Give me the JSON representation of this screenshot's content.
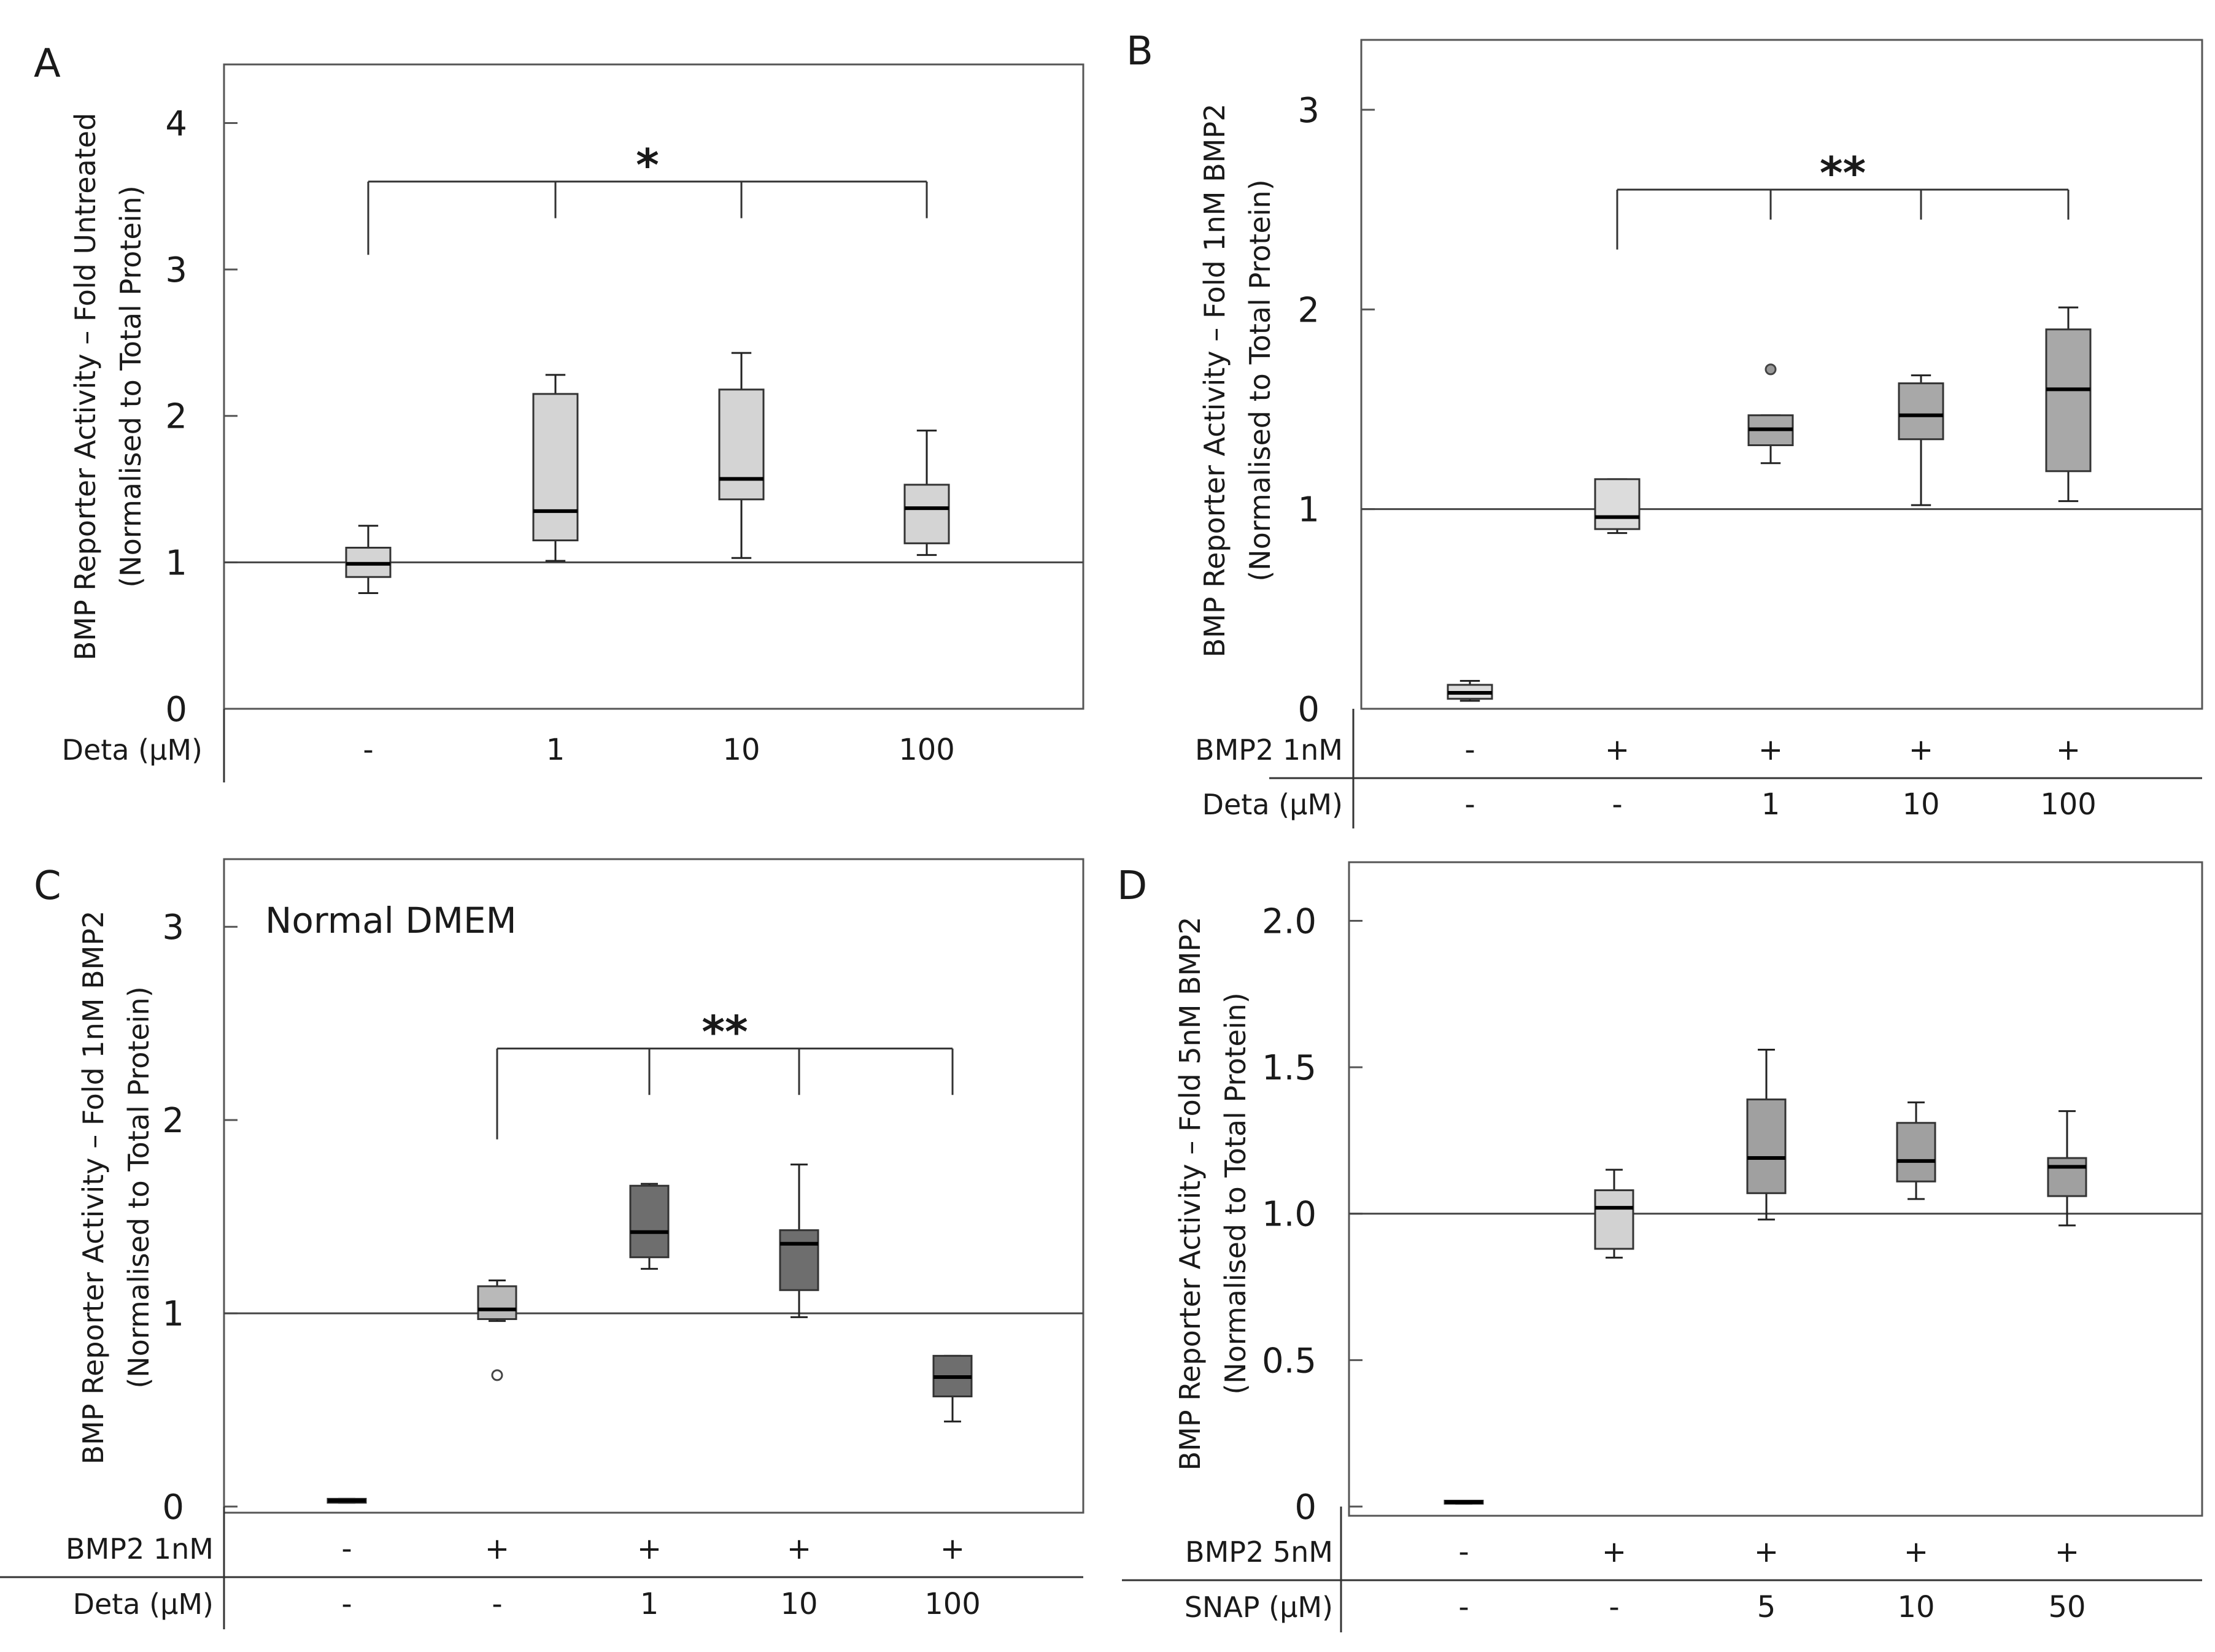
{
  "chart_data": [
    {
      "panel": "A",
      "type": "box",
      "title": "",
      "ylabel_line1": "BMP Reporter Activity – Fold Untreated",
      "ylabel_line2": "(Normalised to Total Protein)",
      "ylim": [
        0,
        4.4
      ],
      "yticks": [
        "0",
        "1",
        "2",
        "3",
        "4"
      ],
      "ytick_values": [
        0,
        1,
        2,
        3,
        4
      ],
      "reference_line": 1,
      "rows": [
        {
          "label": "Deta (µM)",
          "values": [
            "-",
            "1",
            "10",
            "100"
          ]
        }
      ],
      "boxes": [
        {
          "color": "#d4d4d4",
          "min": 0.79,
          "q1": 0.9,
          "median": 0.99,
          "q3": 1.1,
          "max": 1.25,
          "outliers": []
        },
        {
          "color": "#d4d4d4",
          "min": 1.01,
          "q1": 1.15,
          "median": 1.35,
          "q3": 2.15,
          "max": 2.28,
          "outliers": []
        },
        {
          "color": "#d4d4d4",
          "min": 1.03,
          "q1": 1.43,
          "median": 1.57,
          "q3": 2.18,
          "max": 2.43,
          "outliers": []
        },
        {
          "color": "#d4d4d4",
          "min": 1.05,
          "q1": 1.13,
          "median": 1.37,
          "q3": 1.53,
          "max": 1.9,
          "outliers": []
        }
      ],
      "significance": {
        "label": "*",
        "from": 0,
        "to": 3,
        "y": 3.6,
        "left_drop": 3.1,
        "drop": 3.35
      }
    },
    {
      "panel": "B",
      "type": "box",
      "title": "",
      "ylabel_line1": "BMP Reporter Activity – Fold 1nM BMP2",
      "ylabel_line2": "(Normalised to Total Protein)",
      "ylim": [
        0,
        3.35
      ],
      "yticks": [
        "0",
        "1",
        "2",
        "3"
      ],
      "ytick_values": [
        0,
        1,
        2,
        3
      ],
      "reference_line": 1,
      "rows": [
        {
          "label": "BMP2 1nM",
          "values": [
            "-",
            "+",
            "+",
            "+",
            "+"
          ]
        },
        {
          "label": "Deta (µM)",
          "values": [
            "-",
            "-",
            "1",
            "10",
            "100"
          ]
        }
      ],
      "boxes": [
        {
          "color": "#dcdcdc",
          "min": 0.04,
          "q1": 0.05,
          "median": 0.08,
          "q3": 0.12,
          "max": 0.14,
          "outliers": []
        },
        {
          "color": "#dcdcdc",
          "min": 0.88,
          "q1": 0.9,
          "median": 0.96,
          "q3": 1.15,
          "max": 1.15,
          "outliers": []
        },
        {
          "color": "#a8a8a8",
          "min": 1.23,
          "q1": 1.32,
          "median": 1.4,
          "q3": 1.47,
          "max": 1.47,
          "outliers": [
            1.7
          ]
        },
        {
          "color": "#a8a8a8",
          "min": 1.02,
          "q1": 1.35,
          "median": 1.47,
          "q3": 1.63,
          "max": 1.67,
          "outliers": []
        },
        {
          "color": "#a8a8a8",
          "min": 1.04,
          "q1": 1.19,
          "median": 1.6,
          "q3": 1.9,
          "max": 2.01,
          "outliers": []
        }
      ],
      "significance": {
        "label": "**",
        "from": 1,
        "to": 4,
        "y": 2.6,
        "left_drop": 2.3,
        "drop": 2.45
      }
    },
    {
      "panel": "C",
      "type": "box",
      "title": "Normal DMEM",
      "ylabel_line1": "BMP Reporter Activity – Fold 1nM BMP2",
      "ylabel_line2": "(Normalised to Total Protein)",
      "ylim": [
        0,
        3.35
      ],
      "yticks": [
        "0",
        "1",
        "2",
        "3"
      ],
      "ytick_values": [
        0,
        1,
        2,
        3
      ],
      "reference_line": 1,
      "rows": [
        {
          "label": "BMP2 1nM",
          "values": [
            "-",
            "+",
            "+",
            "+",
            "+"
          ]
        },
        {
          "label": "Deta (µM)",
          "values": [
            "-",
            "-",
            "1",
            "10",
            "100"
          ]
        }
      ],
      "boxes": [
        {
          "color": "#c8c8c8",
          "min": 0.02,
          "q1": 0.02,
          "median": 0.03,
          "q3": 0.04,
          "max": 0.04,
          "outliers": []
        },
        {
          "color": "#b9b9b9",
          "min": 0.96,
          "q1": 0.97,
          "median": 1.02,
          "q3": 1.14,
          "max": 1.17,
          "outliers": [
            0.68
          ]
        },
        {
          "color": "#6e6e6e",
          "min": 1.23,
          "q1": 1.29,
          "median": 1.42,
          "q3": 1.66,
          "max": 1.67,
          "outliers": []
        },
        {
          "color": "#6e6e6e",
          "min": 0.98,
          "q1": 1.12,
          "median": 1.36,
          "q3": 1.43,
          "max": 1.77,
          "outliers": []
        },
        {
          "color": "#6e6e6e",
          "min": 0.44,
          "q1": 0.57,
          "median": 0.67,
          "q3": 0.78,
          "max": 0.78,
          "outliers": []
        }
      ],
      "significance": {
        "label": "**",
        "from": 1,
        "to": 4,
        "y": 2.37,
        "left_drop": 1.9,
        "drop": 2.13
      }
    },
    {
      "panel": "D",
      "type": "box",
      "title": "",
      "ylabel_line1": "BMP Reporter Activity – Fold 5nM BMP2",
      "ylabel_line2": "(Normalised to Total Protein)",
      "ylim": [
        0,
        2.2
      ],
      "yticks": [
        "0",
        "0.5",
        "1.0",
        "1.5",
        "2.0"
      ],
      "ytick_values": [
        0,
        0.5,
        1.0,
        1.5,
        2.0
      ],
      "reference_line": 1,
      "rows": [
        {
          "label": "BMP2 5nM",
          "values": [
            "-",
            "+",
            "+",
            "+",
            "+"
          ]
        },
        {
          "label": "SNAP (µM)",
          "values": [
            "-",
            "-",
            "5",
            "10",
            "50"
          ]
        }
      ],
      "boxes": [
        {
          "color": "#c8c8c8",
          "min": 0.01,
          "q1": 0.01,
          "median": 0.015,
          "q3": 0.02,
          "max": 0.02,
          "outliers": []
        },
        {
          "color": "#d2d2d2",
          "min": 0.85,
          "q1": 0.88,
          "median": 1.02,
          "q3": 1.08,
          "max": 1.15,
          "outliers": []
        },
        {
          "color": "#a0a0a0",
          "min": 0.98,
          "q1": 1.07,
          "median": 1.19,
          "q3": 1.39,
          "max": 1.56,
          "outliers": []
        },
        {
          "color": "#a0a0a0",
          "min": 1.05,
          "q1": 1.11,
          "median": 1.18,
          "q3": 1.31,
          "max": 1.38,
          "outliers": []
        },
        {
          "color": "#a0a0a0",
          "min": 0.96,
          "q1": 1.06,
          "median": 1.16,
          "q3": 1.19,
          "max": 1.35,
          "outliers": []
        }
      ],
      "significance": null
    }
  ]
}
